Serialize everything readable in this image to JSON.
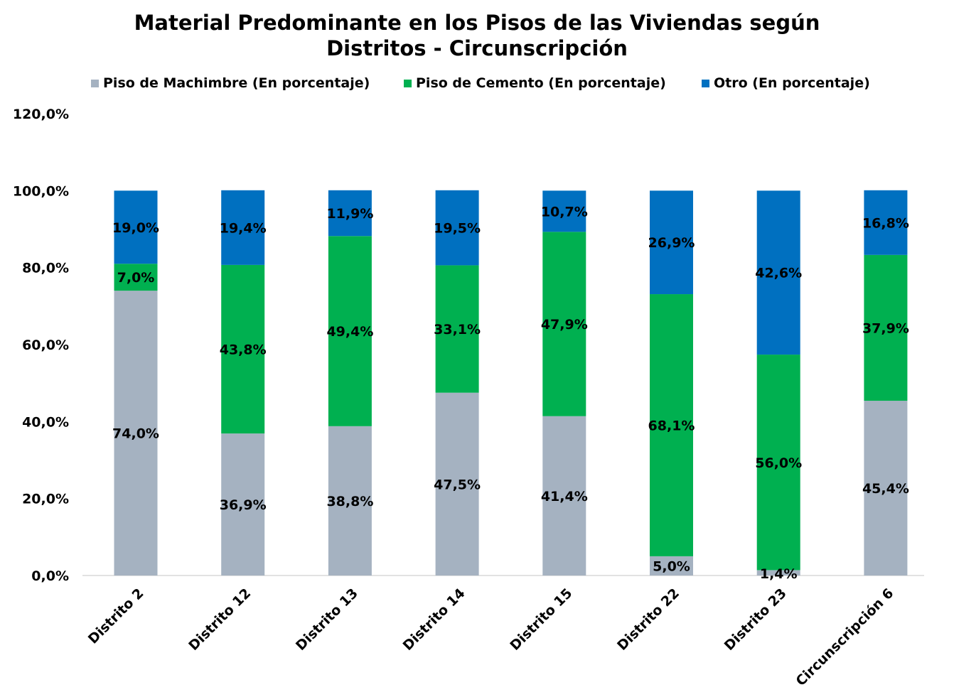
{
  "chart_data": {
    "type": "bar",
    "stacked": true,
    "title_line1": "Material Predominante en los Pisos de las Viviendas según",
    "title_line2": "Distritos - Circunscripción",
    "categories": [
      "Distrito 2",
      "Distrito 12",
      "Distrito 13",
      "Distrito 14",
      "Distrito 15",
      "Distrito 22",
      "Distrito 23",
      "Circunscripción 6"
    ],
    "series": [
      {
        "name": "Piso de Machimbre (En porcentaje)",
        "color": "#A5B2C1",
        "values": [
          74.0,
          36.9,
          38.8,
          47.5,
          41.4,
          5.0,
          1.4,
          45.4
        ],
        "labels": [
          "74,0%",
          "36,9%",
          "38,8%",
          "47,5%",
          "41,4%",
          "5,0%",
          "1,4%",
          "45,4%"
        ]
      },
      {
        "name": "Piso de Cemento (En porcentaje)",
        "color": "#00B050",
        "values": [
          7.0,
          43.8,
          49.4,
          33.1,
          47.9,
          68.1,
          56.0,
          37.9
        ],
        "labels": [
          "7,0%",
          "43,8%",
          "49,4%",
          "33,1%",
          "47,9%",
          "68,1%",
          "56,0%",
          "37,9%"
        ]
      },
      {
        "name": "Otro (En porcentaje)",
        "color": "#0070C0",
        "values": [
          19.0,
          19.4,
          11.9,
          19.5,
          10.7,
          26.9,
          42.6,
          16.8
        ],
        "labels": [
          "19,0%",
          "19,4%",
          "11,9%",
          "19,5%",
          "10,7%",
          "26,9%",
          "42,6%",
          "16,8%"
        ]
      }
    ],
    "ylim": [
      0,
      120
    ],
    "yticks": [
      0,
      20,
      40,
      60,
      80,
      100,
      120
    ],
    "ytick_labels": [
      "0,0%",
      "20,0%",
      "40,0%",
      "60,0%",
      "80,0%",
      "100,0%",
      "120,0%"
    ],
    "grid": false,
    "legend_position": "top"
  }
}
